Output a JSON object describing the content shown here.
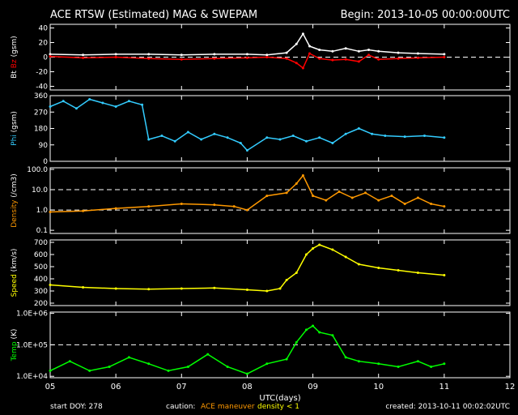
{
  "header": {
    "title": "ACE RTSW (Estimated) MAG & SWEPAM",
    "begin": "Begin: 2013-10-05 00:00:00UTC"
  },
  "footer": {
    "start_doy": "start DOY: 278",
    "caution_label": "caution:",
    "maneuver_label": "ACE maneuver",
    "density_label": "density < 1",
    "created": "created: 2013-10-11 00:02:02UTC"
  },
  "colors": {
    "background": "#000000",
    "axis": "#ffffff",
    "bt": "#ffffff",
    "bz": "#ff0000",
    "phi": "#33ccff",
    "density": "#ff9900",
    "speed": "#ffff00",
    "temp": "#00ff00",
    "maneuver": "#ff9900",
    "density_flag": "#ffff00"
  },
  "chart_data": {
    "type": "line",
    "xlabel": "UTC(days)",
    "x_ticks": [
      "05",
      "06",
      "07",
      "08",
      "09",
      "10",
      "11",
      "12"
    ],
    "xlim": [
      5,
      12
    ],
    "grid": false,
    "panels": [
      {
        "id": "mag",
        "ylabel_parts": [
          "Bt",
          "Bz",
          "(gsm)"
        ],
        "scale": "linear",
        "ylim": [
          -45,
          45
        ],
        "yticks": [
          "40",
          "20",
          "0",
          "-20",
          "-40"
        ],
        "ytick_values": [
          40,
          20,
          0,
          -20,
          -40
        ],
        "ref_lines": [
          0
        ],
        "series": [
          {
            "label": "Bt",
            "color": "#ffffff",
            "x": [
              5.0,
              5.5,
              6.0,
              6.5,
              7.0,
              7.5,
              8.0,
              8.3,
              8.6,
              8.75,
              8.85,
              8.95,
              9.1,
              9.3,
              9.5,
              9.7,
              9.85,
              10.0,
              10.3,
              10.6,
              11.0
            ],
            "y": [
              4,
              3,
              4,
              4,
              3,
              4,
              4,
              3,
              6,
              18,
              32,
              15,
              10,
              8,
              12,
              8,
              10,
              8,
              6,
              5,
              4
            ]
          },
          {
            "label": "Bz",
            "color": "#ff0000",
            "x": [
              5.0,
              5.5,
              6.0,
              6.5,
              7.0,
              7.5,
              8.0,
              8.3,
              8.6,
              8.75,
              8.85,
              8.95,
              9.1,
              9.3,
              9.5,
              9.7,
              9.85,
              10.0,
              10.3,
              10.6,
              11.0
            ],
            "y": [
              1,
              -1,
              0,
              -2,
              -3,
              -2,
              -1,
              0,
              -2,
              -8,
              -15,
              5,
              -2,
              -4,
              -3,
              -6,
              3,
              -3,
              -2,
              -1,
              0
            ]
          }
        ]
      },
      {
        "id": "phi",
        "ylabel_parts": [
          "Phi",
          "(gsm)"
        ],
        "scale": "linear",
        "ylim": [
          0,
          360
        ],
        "yticks": [
          "360",
          "270",
          "180",
          "90",
          "0"
        ],
        "ytick_values": [
          360,
          270,
          180,
          90,
          0
        ],
        "ref_lines": [],
        "series": [
          {
            "label": "Phi",
            "color": "#33ccff",
            "x": [
              5.0,
              5.2,
              5.4,
              5.6,
              5.8,
              6.0,
              6.2,
              6.4,
              6.5,
              6.7,
              6.9,
              7.1,
              7.3,
              7.5,
              7.7,
              7.9,
              8.0,
              8.3,
              8.5,
              8.7,
              8.9,
              9.1,
              9.3,
              9.5,
              9.7,
              9.9,
              10.1,
              10.4,
              10.7,
              11.0
            ],
            "y": [
              300,
              330,
              290,
              340,
              320,
              300,
              330,
              310,
              120,
              140,
              110,
              160,
              120,
              150,
              130,
              100,
              60,
              130,
              120,
              140,
              110,
              130,
              100,
              150,
              180,
              150,
              140,
              135,
              140,
              130
            ]
          }
        ]
      },
      {
        "id": "density",
        "ylabel_parts": [
          "Density",
          "(/cm3)"
        ],
        "scale": "log",
        "ylim": [
          0.07,
          120
        ],
        "yticks": [
          "100.0",
          "10.0",
          "1.0",
          "0.1"
        ],
        "ytick_values": [
          100,
          10,
          1,
          0.1
        ],
        "ref_lines": [
          1,
          10
        ],
        "series": [
          {
            "label": "Density",
            "color": "#ff9900",
            "x": [
              5.0,
              5.5,
              6.0,
              6.5,
              7.0,
              7.5,
              7.8,
              8.0,
              8.3,
              8.6,
              8.75,
              8.85,
              9.0,
              9.2,
              9.4,
              9.6,
              9.8,
              10.0,
              10.2,
              10.4,
              10.6,
              10.8,
              11.0
            ],
            "y": [
              0.8,
              0.9,
              1.2,
              1.5,
              2.0,
              1.8,
              1.5,
              1.0,
              5.0,
              7.0,
              20,
              50,
              5.0,
              3.0,
              8.0,
              4.0,
              7.0,
              3.0,
              5.0,
              2.0,
              4.0,
              2.0,
              1.5
            ]
          }
        ]
      },
      {
        "id": "speed",
        "ylabel_parts": [
          "Speed",
          "(km/s)"
        ],
        "scale": "linear",
        "ylim": [
          180,
          720
        ],
        "yticks": [
          "700",
          "600",
          "500",
          "400",
          "300",
          "200"
        ],
        "ytick_values": [
          700,
          600,
          500,
          400,
          300,
          200
        ],
        "ref_lines": [],
        "series": [
          {
            "label": "Speed",
            "color": "#ffff00",
            "x": [
              5.0,
              5.5,
              6.0,
              6.5,
              7.0,
              7.5,
              8.0,
              8.3,
              8.5,
              8.6,
              8.75,
              8.9,
              9.0,
              9.1,
              9.3,
              9.5,
              9.7,
              10.0,
              10.3,
              10.6,
              11.0
            ],
            "y": [
              350,
              330,
              320,
              315,
              320,
              325,
              310,
              300,
              320,
              390,
              450,
              600,
              650,
              680,
              640,
              580,
              520,
              490,
              470,
              450,
              430
            ]
          }
        ]
      },
      {
        "id": "temp",
        "ylabel_parts": [
          "Temp",
          "(K)"
        ],
        "scale": "log",
        "ylim": [
          9000,
          1100000
        ],
        "yticks": [
          "1.0E+06",
          "1.0E+05",
          "1.0E+04"
        ],
        "ytick_values": [
          1000000,
          100000,
          10000
        ],
        "ref_lines": [
          100000
        ],
        "series": [
          {
            "label": "Temp",
            "color": "#00ff00",
            "x": [
              5.0,
              5.3,
              5.6,
              5.9,
              6.2,
              6.5,
              6.8,
              7.1,
              7.4,
              7.7,
              8.0,
              8.3,
              8.6,
              8.75,
              8.9,
              9.0,
              9.1,
              9.3,
              9.5,
              9.7,
              10.0,
              10.3,
              10.6,
              10.8,
              11.0
            ],
            "y": [
              15000,
              30000,
              15000,
              20000,
              40000,
              25000,
              15000,
              20000,
              50000,
              20000,
              12000,
              25000,
              35000,
              120000,
              300000,
              400000,
              250000,
              200000,
              40000,
              30000,
              25000,
              20000,
              30000,
              20000,
              25000
            ]
          }
        ]
      }
    ]
  }
}
